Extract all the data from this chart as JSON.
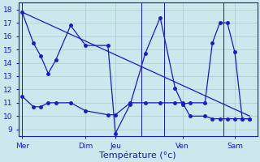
{
  "title": "Température (°c)",
  "bg_color": "#cce8ec",
  "line_color": "#1a1acc",
  "grid_color": "#aacccc",
  "ylim": [
    8.5,
    18.5
  ],
  "yticks": [
    9,
    10,
    11,
    12,
    13,
    14,
    15,
    16,
    17,
    18
  ],
  "xlim": [
    0,
    32
  ],
  "x_day_positions": [
    0.5,
    9,
    13,
    22,
    29
  ],
  "x_day_labels": [
    "Mer",
    "Dim",
    "Jeu",
    "Ven",
    "Sam"
  ],
  "x_vline_positions": [
    0.5,
    16.5,
    19.5,
    27.5
  ],
  "series_wavy_x": [
    0.5,
    2,
    3,
    4,
    5,
    7,
    9,
    12,
    13,
    15,
    17,
    19,
    21,
    22,
    23,
    25,
    26,
    27,
    28,
    29,
    30,
    31
  ],
  "series_wavy_y": [
    17.8,
    15.5,
    14.5,
    13.2,
    14.2,
    16.8,
    15.3,
    15.3,
    8.7,
    10.9,
    14.7,
    17.4,
    12.1,
    10.9,
    11.0,
    11.0,
    15.5,
    17.0,
    17.0,
    14.8,
    9.8,
    9.8
  ],
  "series_flat_x": [
    0.5,
    2,
    3,
    4,
    5,
    7,
    9,
    12,
    13,
    15,
    17,
    19,
    21,
    22,
    23,
    25,
    26,
    27,
    28,
    29,
    30,
    31
  ],
  "series_flat_y": [
    11.5,
    10.7,
    10.7,
    11.0,
    11.0,
    11.0,
    10.4,
    10.1,
    10.1,
    11.0,
    11.0,
    11.0,
    11.0,
    11.0,
    10.0,
    10.0,
    9.8,
    9.8,
    9.8,
    9.8,
    9.8,
    9.8
  ],
  "series_trend_x": [
    0.5,
    31
  ],
  "series_trend_y": [
    17.8,
    10.0
  ],
  "marker_size": 2.5,
  "linewidth": 0.9,
  "tick_fontsize": 6.5,
  "xlabel_fontsize": 8
}
